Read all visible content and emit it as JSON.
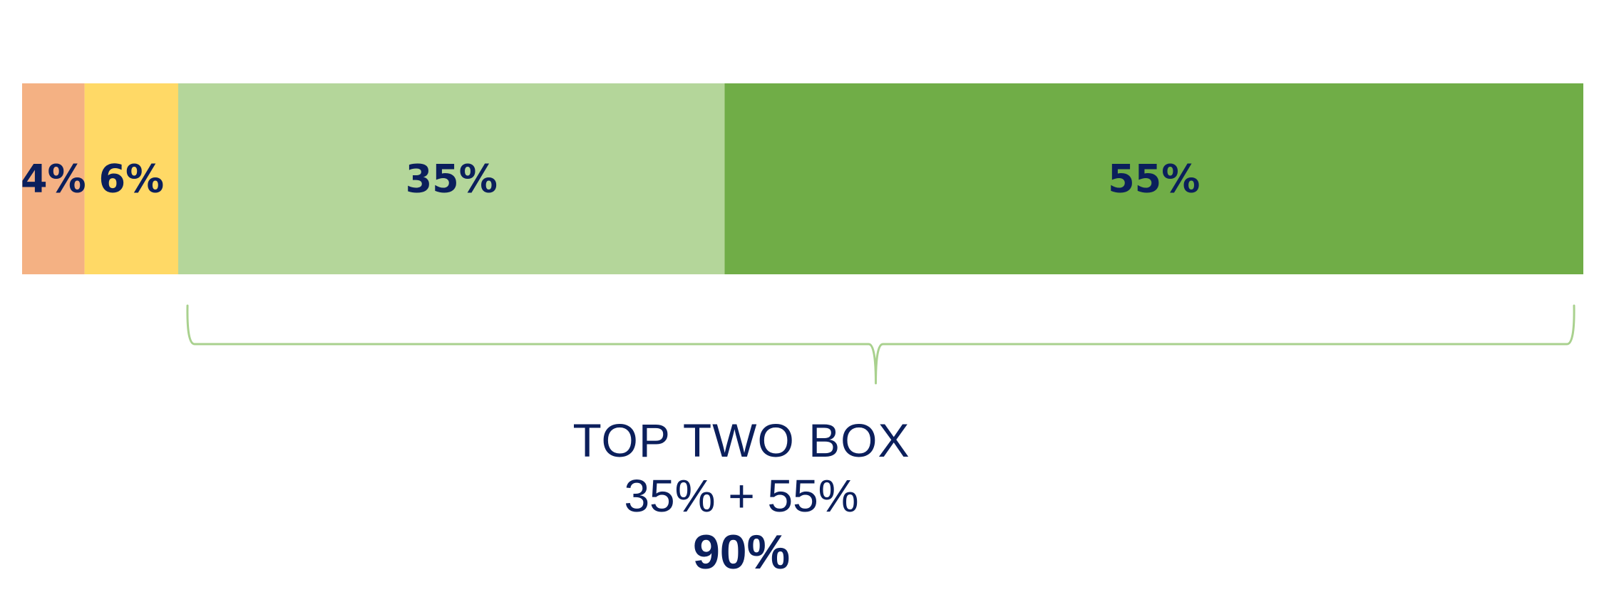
{
  "chart_data": {
    "type": "bar",
    "orientation": "horizontal-stacked-100",
    "series": [
      {
        "value": 4,
        "label": "4%",
        "color": "#F4B183"
      },
      {
        "value": 6,
        "label": "6%",
        "color": "#FFD966"
      },
      {
        "value": 35,
        "label": "35%",
        "color": "#B4D69A"
      },
      {
        "value": 55,
        "label": "55%",
        "color": "#70AD47"
      }
    ],
    "xlim": [
      0,
      100
    ],
    "grid": false,
    "legend": "none",
    "label_color": "#0B1F5C",
    "bracket": {
      "from_series": 2,
      "to_series": 3,
      "color": "#A9D18E"
    },
    "summary": {
      "title": "TOP TWO BOX",
      "formula": "35% + 55%",
      "total": "90%"
    }
  }
}
